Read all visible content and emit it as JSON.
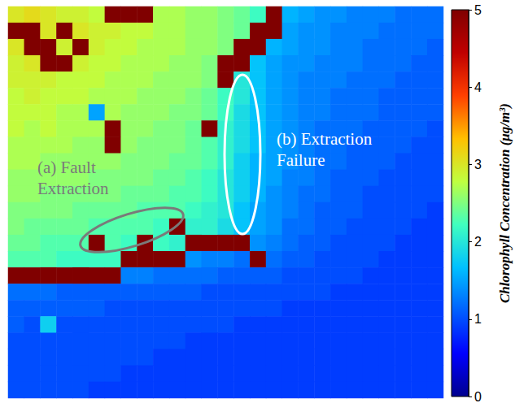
{
  "chart_data": {
    "type": "heatmap",
    "tick_labels": false,
    "cells": [
      [
        3.0,
        3.1,
        3.0,
        2.9,
        2.9,
        2.8,
        5,
        5,
        5,
        2.7,
        2.7,
        2.6,
        2.6,
        2.5,
        2.4,
        2.2,
        5,
        1.6,
        1.5,
        1.4,
        1.4,
        1.3,
        1.3,
        1.3,
        1.2,
        1.2,
        1.2
      ],
      [
        5,
        5,
        3.0,
        5,
        3.0,
        2.9,
        2.9,
        2.8,
        2.8,
        2.7,
        2.7,
        2.6,
        2.6,
        2.5,
        2.4,
        5,
        5,
        1.5,
        1.4,
        1.4,
        1.3,
        1.3,
        1.3,
        1.2,
        1.2,
        1.2,
        1.2
      ],
      [
        3.0,
        5,
        5,
        2.9,
        5,
        2.9,
        2.8,
        2.8,
        2.7,
        2.7,
        2.7,
        2.6,
        2.6,
        2.5,
        5,
        5,
        1.6,
        1.5,
        1.4,
        1.4,
        1.3,
        1.3,
        1.2,
        1.2,
        1.2,
        1.2,
        1.1
      ],
      [
        2.9,
        3.0,
        5,
        5,
        2.9,
        2.8,
        2.8,
        2.7,
        2.7,
        2.7,
        2.6,
        2.6,
        2.5,
        5,
        5,
        1.7,
        1.5,
        1.4,
        1.4,
        1.3,
        1.3,
        1.3,
        1.2,
        1.2,
        1.2,
        1.1,
        1.1
      ],
      [
        2.9,
        2.9,
        2.9,
        2.8,
        2.8,
        2.8,
        2.7,
        2.7,
        2.7,
        2.6,
        2.6,
        2.6,
        2.5,
        5,
        2.0,
        1.7,
        1.5,
        1.4,
        1.3,
        1.3,
        1.3,
        1.2,
        1.2,
        1.2,
        1.1,
        1.1,
        1.1
      ],
      [
        2.8,
        2.9,
        2.8,
        2.8,
        2.8,
        2.7,
        2.7,
        2.7,
        2.6,
        2.6,
        2.6,
        2.5,
        2.4,
        2.2,
        2.0,
        1.7,
        1.5,
        1.4,
        1.3,
        1.3,
        1.2,
        1.2,
        1.2,
        1.1,
        1.1,
        1.1,
        1.1
      ],
      [
        2.8,
        2.8,
        2.8,
        2.7,
        2.7,
        1.5,
        2.7,
        2.6,
        2.6,
        2.6,
        2.5,
        2.5,
        2.4,
        2.2,
        1.9,
        1.7,
        1.5,
        1.4,
        1.3,
        1.3,
        1.2,
        1.2,
        1.2,
        1.1,
        1.1,
        1.1,
        1.1
      ],
      [
        2.8,
        2.7,
        2.8,
        2.7,
        2.7,
        2.7,
        5,
        2.6,
        2.6,
        2.5,
        2.5,
        2.4,
        5,
        2.1,
        1.9,
        1.7,
        1.5,
        1.4,
        1.3,
        1.2,
        1.2,
        1.2,
        1.1,
        1.1,
        1.1,
        1.1,
        1.0
      ],
      [
        2.7,
        2.7,
        2.7,
        2.7,
        2.6,
        2.6,
        5,
        2.6,
        2.5,
        2.5,
        2.5,
        2.4,
        2.3,
        2.1,
        1.9,
        1.7,
        1.5,
        1.4,
        1.3,
        1.2,
        1.2,
        1.1,
        1.1,
        1.1,
        1.1,
        1.0,
        1.0
      ],
      [
        2.7,
        2.7,
        2.6,
        2.6,
        2.6,
        2.6,
        2.6,
        2.5,
        2.5,
        2.5,
        2.4,
        2.4,
        2.3,
        2.1,
        1.8,
        1.6,
        1.5,
        1.4,
        1.3,
        1.2,
        1.2,
        1.1,
        1.1,
        1.1,
        1.0,
        1.0,
        1.0
      ],
      [
        2.6,
        2.6,
        2.6,
        2.6,
        2.6,
        2.5,
        2.5,
        2.5,
        2.5,
        2.4,
        2.4,
        2.3,
        2.2,
        2.0,
        1.8,
        1.6,
        1.5,
        1.3,
        1.3,
        1.2,
        1.1,
        1.1,
        1.1,
        1.0,
        1.0,
        1.0,
        1.0
      ],
      [
        2.6,
        2.6,
        2.5,
        2.5,
        2.5,
        2.5,
        2.5,
        2.4,
        2.4,
        2.4,
        2.3,
        2.3,
        2.2,
        2.0,
        1.8,
        1.6,
        1.4,
        1.3,
        1.2,
        1.2,
        1.1,
        1.1,
        1.0,
        1.0,
        1.0,
        1.0,
        1.0
      ],
      [
        2.5,
        2.5,
        2.5,
        2.5,
        2.4,
        2.4,
        2.4,
        2.4,
        2.3,
        2.3,
        2.3,
        2.2,
        2.1,
        2.0,
        1.7,
        1.5,
        1.4,
        1.3,
        1.2,
        1.1,
        1.1,
        1.1,
        1.0,
        1.0,
        1.0,
        1.0,
        0.9
      ],
      [
        2.5,
        2.4,
        2.4,
        2.4,
        2.4,
        2.3,
        2.3,
        2.3,
        2.3,
        2.2,
        5,
        2.1,
        2.1,
        1.9,
        1.7,
        1.5,
        1.4,
        1.2,
        1.2,
        1.1,
        1.1,
        1.0,
        1.0,
        1.0,
        1.0,
        0.9,
        0.9
      ],
      [
        2.4,
        2.4,
        2.3,
        2.3,
        2.3,
        5,
        2.3,
        2.2,
        5,
        2.2,
        2.1,
        5,
        5,
        5,
        5,
        1.4,
        1.3,
        1.2,
        1.1,
        1.1,
        1.0,
        1.0,
        1.0,
        1.0,
        0.9,
        0.9,
        0.9
      ],
      [
        2.3,
        2.3,
        2.3,
        2.2,
        2.2,
        2.2,
        2.2,
        5,
        5,
        5,
        5,
        1.4,
        1.3,
        1.3,
        1.2,
        5,
        1.2,
        1.1,
        1.1,
        1.0,
        1.0,
        1.0,
        1.0,
        0.9,
        0.9,
        0.9,
        0.9
      ],
      [
        5,
        5,
        5,
        5,
        5,
        5,
        5,
        1.3,
        1.3,
        1.2,
        1.2,
        1.2,
        1.2,
        1.1,
        1.1,
        1.1,
        1.1,
        1.0,
        1.0,
        1.0,
        1.0,
        1.0,
        0.9,
        0.9,
        0.9,
        0.9,
        0.9
      ],
      [
        1.2,
        1.2,
        1.2,
        1.1,
        1.1,
        1.1,
        1.1,
        1.1,
        1.1,
        1.1,
        1.1,
        1.1,
        1.0,
        1.0,
        1.0,
        1.0,
        1.0,
        1.0,
        1.0,
        1.0,
        0.9,
        0.9,
        0.9,
        0.9,
        0.9,
        0.9,
        0.9
      ],
      [
        1.1,
        1.1,
        1.1,
        1.1,
        1.1,
        1.1,
        1.0,
        1.0,
        1.0,
        1.0,
        1.0,
        1.0,
        1.0,
        1.0,
        1.0,
        1.0,
        1.0,
        0.9,
        0.9,
        0.9,
        0.9,
        0.9,
        0.9,
        0.9,
        0.9,
        0.9,
        0.9
      ],
      [
        1.1,
        1.0,
        1.8,
        1.0,
        1.0,
        1.0,
        1.0,
        1.0,
        1.0,
        1.0,
        1.0,
        1.0,
        1.0,
        1.0,
        0.9,
        0.9,
        0.9,
        0.9,
        0.9,
        0.9,
        0.9,
        0.9,
        0.9,
        0.9,
        0.9,
        0.9,
        0.9
      ],
      [
        1.0,
        1.0,
        1.0,
        1.0,
        1.0,
        1.0,
        1.0,
        1.0,
        1.0,
        1.0,
        1.0,
        0.9,
        0.9,
        0.9,
        0.9,
        0.9,
        0.9,
        0.9,
        0.9,
        0.9,
        0.9,
        0.9,
        0.9,
        0.9,
        0.9,
        0.9,
        0.9
      ],
      [
        1.0,
        1.0,
        1.0,
        1.0,
        1.0,
        1.0,
        1.0,
        1.0,
        1.0,
        0.9,
        0.9,
        0.9,
        0.9,
        0.9,
        0.9,
        0.9,
        0.9,
        0.9,
        0.9,
        0.9,
        0.9,
        0.9,
        0.9,
        0.9,
        0.9,
        0.9,
        0.9
      ],
      [
        1.0,
        1.0,
        1.0,
        1.0,
        1.0,
        1.0,
        1.0,
        0.9,
        0.9,
        0.9,
        0.9,
        0.9,
        0.9,
        0.9,
        0.9,
        0.9,
        0.9,
        0.9,
        0.9,
        0.9,
        0.9,
        0.9,
        0.9,
        0.9,
        0.9,
        0.9,
        0.9
      ],
      [
        1.0,
        1.0,
        1.0,
        1.0,
        1.0,
        0.9,
        0.9,
        0.9,
        0.9,
        0.9,
        0.9,
        0.9,
        0.9,
        0.9,
        0.9,
        0.9,
        0.9,
        0.9,
        0.9,
        0.9,
        0.9,
        0.9,
        0.9,
        0.9,
        0.9,
        0.9,
        0.9
      ]
    ],
    "colorbar": {
      "label": "Chlorophyll Concentration (μg/m³)",
      "range": [
        0,
        5
      ],
      "ticks": [
        0,
        1,
        2,
        3,
        4,
        5
      ]
    },
    "annotations": [
      "(a) Fault Extraction",
      "(b) Extraction Failure"
    ]
  }
}
